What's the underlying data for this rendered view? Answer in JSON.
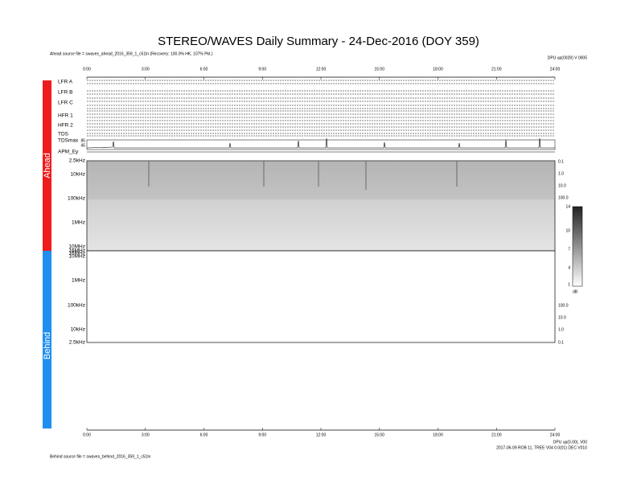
{
  "header": {
    "title": "STEREO/WAVES Daily Summary - 24-Dec-2016 (DOY 359)",
    "ahead_source": "Ahead source file = swaves_ahead_2016_359_1_c51ln (Recovery: 100.0% HK, 107% Pkt.)",
    "right_note": "DPU up(0028) V 0005"
  },
  "time_axis": {
    "labels": [
      "0:00",
      "3:00",
      "6:00",
      "9:00",
      "12:00",
      "15:00",
      "18:00",
      "21:00",
      "24:00"
    ]
  },
  "ahead": {
    "label": "Ahead",
    "panels": [
      "LFR A",
      "LFR B",
      "LFR C",
      "HFR 1",
      "HFR 2",
      "TDS",
      "TDSmax",
      "APM_Ey"
    ],
    "tdsmax_ticks": [
      "85",
      "45"
    ],
    "freq_left": [
      "2.5kHz",
      "10kHz",
      "100kHz",
      "1MHz",
      "10MHz",
      "16MHz"
    ],
    "freq_right": [
      "0.1",
      "1.0",
      "10.0",
      "100.0"
    ]
  },
  "behind": {
    "label": "Behind",
    "freq_left": [
      "16MHz",
      "10MHz",
      "1MHz",
      "100kHz",
      "10kHz",
      "2.5kHz"
    ],
    "freq_right": [
      "100.0",
      "10.0",
      "1.0",
      "0.1"
    ]
  },
  "colorbar": {
    "ticks": [
      "14",
      "10",
      "7",
      "4",
      "1"
    ],
    "unit": "dB"
  },
  "footer": {
    "behind_source": "Behind source file = swaves_behind_2016_359_1_c51ln",
    "note1": "DPU up(0.00), V00",
    "note2": "2017-06-09 ROB 11, TREE V04 0.0(01) DEC V010"
  }
}
